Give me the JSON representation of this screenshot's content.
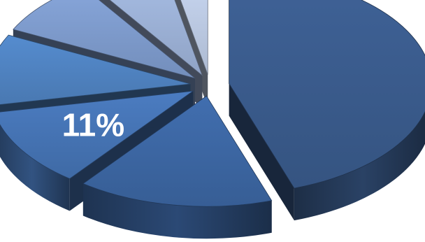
{
  "chart_data": {
    "type": "pie",
    "style": "3d-exploded",
    "slices": [
      {
        "value": 43,
        "color": "#3a5b8c",
        "label": ""
      },
      {
        "value": 15,
        "color": "#3c66a2",
        "label": ""
      },
      {
        "value": 11,
        "color": "#4573b3",
        "label": "11%"
      },
      {
        "value": 10,
        "color": "#4f82c0",
        "label": ""
      },
      {
        "value": 8,
        "color": "#7d9acb",
        "label": ""
      },
      {
        "value": 6,
        "color": "#9cb1d6",
        "label": ""
      },
      {
        "value": 3,
        "color": "#bccae3",
        "label": ""
      }
    ],
    "legend": "none",
    "title": ""
  }
}
